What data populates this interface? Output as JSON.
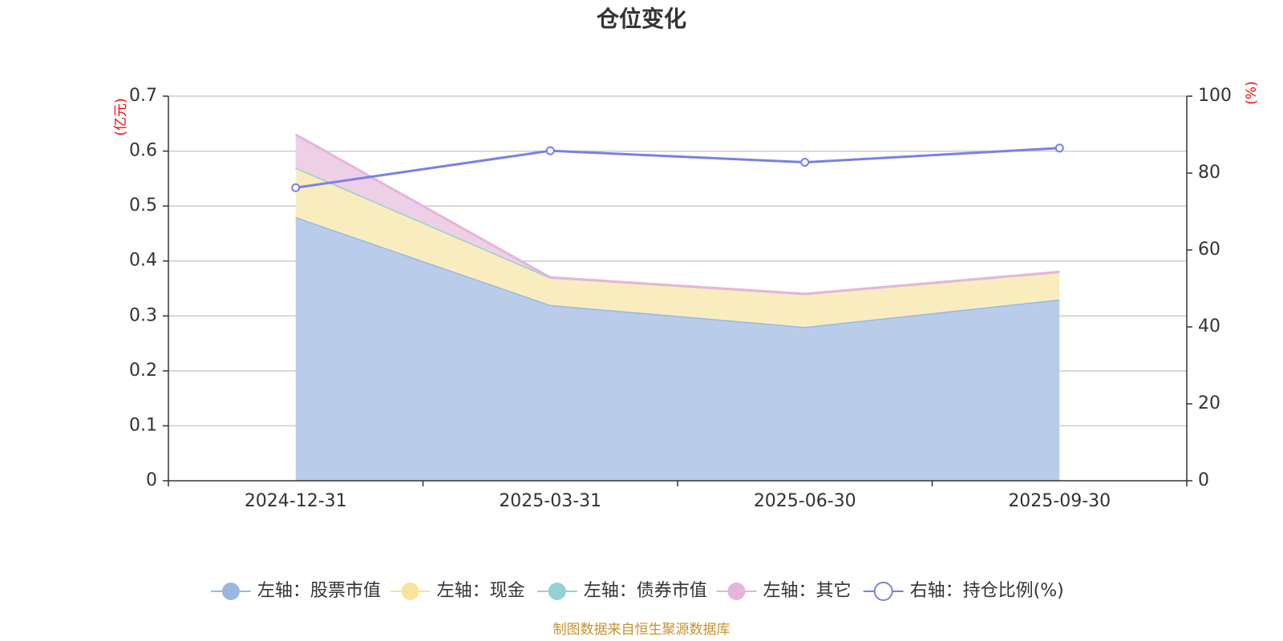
{
  "chart_data": {
    "type": "area",
    "title": "仓位变化",
    "categories": [
      "2024-12-31",
      "2025-03-31",
      "2025-06-30",
      "2025-09-30"
    ],
    "left_axis": {
      "unit": "(亿元)",
      "ylim": [
        0,
        0.7
      ],
      "ticks": [
        "0",
        "0.1",
        "0.2",
        "0.3",
        "0.4",
        "0.5",
        "0.6",
        "0.7"
      ]
    },
    "right_axis": {
      "unit": "(%)",
      "ylim": [
        0,
        100
      ],
      "ticks": [
        "0",
        "20",
        "40",
        "60",
        "80",
        "100"
      ]
    },
    "series": [
      {
        "name": "左轴：股票市值",
        "axis": "left",
        "kind": "area",
        "color": "#9ab7e0",
        "fill": "#b9cdeb",
        "values": [
          0.48,
          0.32,
          0.28,
          0.33
        ]
      },
      {
        "name": "左轴：现金",
        "axis": "left",
        "kind": "area",
        "color": "#f7e49c",
        "fill": "#f9edbf",
        "values": [
          0.09,
          0.05,
          0.06,
          0.05
        ]
      },
      {
        "name": "左轴：债券市值",
        "axis": "left",
        "kind": "area",
        "color": "#93d2d2",
        "fill": "#b5e0e0",
        "values": [
          0,
          0,
          0,
          0
        ]
      },
      {
        "name": "左轴：其它",
        "axis": "left",
        "kind": "area",
        "color": "#e6b5da",
        "fill": "#eed0e6",
        "values": [
          0.06,
          0,
          0,
          0
        ]
      },
      {
        "name": "右轴：持仓比例(%)",
        "axis": "right",
        "kind": "line",
        "color": "#7b7fe8",
        "values": [
          76.2,
          85.8,
          82.8,
          86.5
        ]
      }
    ],
    "legend_position": "bottom",
    "grid": true
  },
  "footer": {
    "source": "制图数据来自恒生聚源数据库"
  }
}
